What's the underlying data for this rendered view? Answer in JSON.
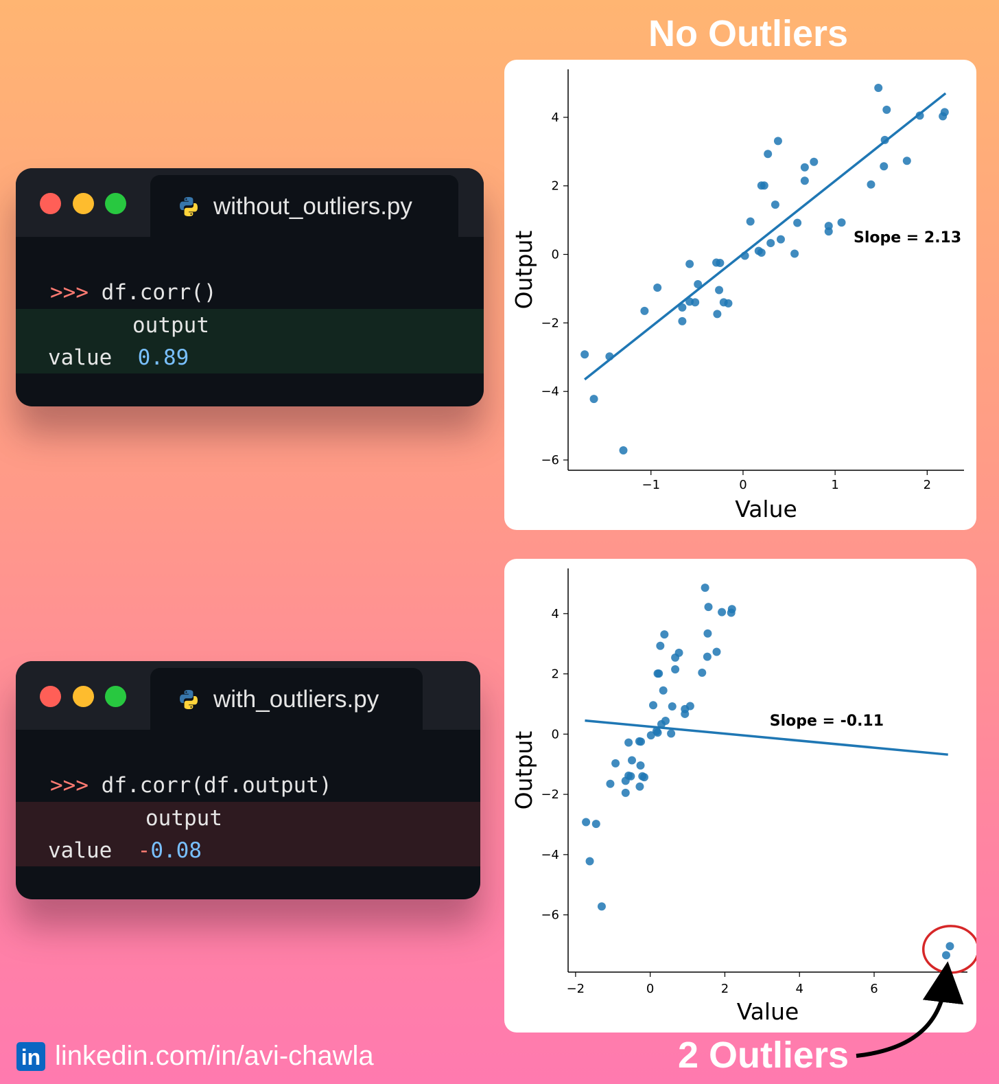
{
  "headline_top": "No Outliers",
  "headline_bottom": "2 Outliers",
  "windows": [
    {
      "filename": "without_outliers.py",
      "prompt": ">>>",
      "command": " df.corr()",
      "out_header": "output",
      "row_label": "value",
      "row_value_sign": "",
      "row_value": "0.89"
    },
    {
      "filename": "with_outliers.py",
      "prompt": ">>>",
      "command": " df.corr(df.output)",
      "out_header": "output",
      "row_label": "value",
      "row_value_sign": "-",
      "row_value": "0.08"
    }
  ],
  "footer": {
    "linkedin_logo": "in",
    "linkedin_text": "linkedin.com/in/avi-chawla"
  },
  "colors": {
    "point": "#1f77b4",
    "line": "#1f77b4",
    "highlight": "#d62728",
    "prompt": "#ff7b72",
    "number": "#79c0ff"
  },
  "chart_data": [
    {
      "type": "scatter",
      "xlabel": "Value",
      "ylabel": "Output",
      "xlim": [
        -1.9,
        2.4
      ],
      "ylim": [
        -6.3,
        5.4
      ],
      "xticks": [
        {
          "v": -1,
          "label": "−1"
        },
        {
          "v": 0,
          "label": "0"
        },
        {
          "v": 1,
          "label": "1"
        },
        {
          "v": 2,
          "label": "2"
        }
      ],
      "yticks": [
        {
          "v": 4,
          "label": "4"
        },
        {
          "v": 2,
          "label": "2"
        },
        {
          "v": 0,
          "label": "0"
        },
        {
          "v": -2,
          "label": "−2"
        },
        {
          "v": -4,
          "label": "−4"
        },
        {
          "v": -6,
          "label": "−6"
        }
      ],
      "slope_label": "Slope = 2.13",
      "slope_label_pos": [
        1.2,
        0.35
      ],
      "fit_line": [
        [
          -1.72,
          -3.65
        ],
        [
          2.2,
          4.7
        ]
      ],
      "points": [
        [
          -1.72,
          -2.92
        ],
        [
          -1.62,
          -4.22
        ],
        [
          -1.45,
          -2.98
        ],
        [
          -1.3,
          -5.72
        ],
        [
          -1.07,
          -1.65
        ],
        [
          -0.93,
          -0.97
        ],
        [
          -0.66,
          -1.55
        ],
        [
          -0.66,
          -1.95
        ],
        [
          -0.58,
          -0.28
        ],
        [
          -0.58,
          -1.38
        ],
        [
          -0.52,
          -1.4
        ],
        [
          -0.49,
          -0.87
        ],
        [
          -0.29,
          -0.24
        ],
        [
          -0.25,
          -0.25
        ],
        [
          -0.28,
          -1.74
        ],
        [
          -0.26,
          -1.04
        ],
        [
          -0.21,
          -1.4
        ],
        [
          -0.16,
          -1.43
        ],
        [
          0.02,
          -0.04
        ],
        [
          0.08,
          0.96
        ],
        [
          0.17,
          0.1
        ],
        [
          0.2,
          0.05
        ],
        [
          0.2,
          2.01
        ],
        [
          0.23,
          2.01
        ],
        [
          0.27,
          2.93
        ],
        [
          0.3,
          0.33
        ],
        [
          0.35,
          1.45
        ],
        [
          0.38,
          3.31
        ],
        [
          0.41,
          0.44
        ],
        [
          0.56,
          0.02
        ],
        [
          0.59,
          0.92
        ],
        [
          0.67,
          2.15
        ],
        [
          0.67,
          2.54
        ],
        [
          0.77,
          2.7
        ],
        [
          0.93,
          0.83
        ],
        [
          0.93,
          0.67
        ],
        [
          1.07,
          0.93
        ],
        [
          1.39,
          2.04
        ],
        [
          1.47,
          4.86
        ],
        [
          1.53,
          2.57
        ],
        [
          1.54,
          3.34
        ],
        [
          1.56,
          4.22
        ],
        [
          1.78,
          2.73
        ],
        [
          1.92,
          4.05
        ],
        [
          2.17,
          4.03
        ],
        [
          2.19,
          4.15
        ]
      ]
    },
    {
      "type": "scatter",
      "xlabel": "Value",
      "ylabel": "Output",
      "xlim": [
        -2.2,
        8.5
      ],
      "ylim": [
        -7.9,
        5.5
      ],
      "xticks": [
        {
          "v": -2,
          "label": "−2"
        },
        {
          "v": 0,
          "label": "0"
        },
        {
          "v": 2,
          "label": "2"
        },
        {
          "v": 4,
          "label": "4"
        },
        {
          "v": 6,
          "label": "6"
        },
        {
          "v": 8,
          "label": "8"
        }
      ],
      "yticks": [
        {
          "v": 4,
          "label": "4"
        },
        {
          "v": 2,
          "label": "2"
        },
        {
          "v": 0,
          "label": "0"
        },
        {
          "v": -2,
          "label": "−2"
        },
        {
          "v": -4,
          "label": "−4"
        },
        {
          "v": -6,
          "label": "−6"
        }
      ],
      "slope_label": "Slope = -0.11",
      "slope_label_pos": [
        3.2,
        0.28
      ],
      "fit_line": [
        [
          -1.75,
          0.45
        ],
        [
          7.98,
          -0.68
        ]
      ],
      "outliers": [
        [
          7.93,
          -7.34
        ],
        [
          8.03,
          -7.04
        ]
      ],
      "points": [
        [
          -1.72,
          -2.92
        ],
        [
          -1.62,
          -4.22
        ],
        [
          -1.45,
          -2.98
        ],
        [
          -1.3,
          -5.72
        ],
        [
          -1.07,
          -1.65
        ],
        [
          -0.93,
          -0.97
        ],
        [
          -0.66,
          -1.55
        ],
        [
          -0.66,
          -1.95
        ],
        [
          -0.58,
          -0.28
        ],
        [
          -0.58,
          -1.38
        ],
        [
          -0.52,
          -1.4
        ],
        [
          -0.49,
          -0.87
        ],
        [
          -0.29,
          -0.24
        ],
        [
          -0.25,
          -0.25
        ],
        [
          -0.28,
          -1.74
        ],
        [
          -0.26,
          -1.04
        ],
        [
          -0.21,
          -1.4
        ],
        [
          -0.16,
          -1.43
        ],
        [
          0.02,
          -0.04
        ],
        [
          0.08,
          0.96
        ],
        [
          0.17,
          0.1
        ],
        [
          0.2,
          0.05
        ],
        [
          0.2,
          2.01
        ],
        [
          0.23,
          2.01
        ],
        [
          0.27,
          2.93
        ],
        [
          0.3,
          0.33
        ],
        [
          0.35,
          1.45
        ],
        [
          0.38,
          3.31
        ],
        [
          0.41,
          0.44
        ],
        [
          0.56,
          0.02
        ],
        [
          0.59,
          0.92
        ],
        [
          0.67,
          2.15
        ],
        [
          0.67,
          2.54
        ],
        [
          0.77,
          2.7
        ],
        [
          0.93,
          0.83
        ],
        [
          0.93,
          0.67
        ],
        [
          1.07,
          0.93
        ],
        [
          1.39,
          2.04
        ],
        [
          1.47,
          4.86
        ],
        [
          1.53,
          2.57
        ],
        [
          1.54,
          3.34
        ],
        [
          1.56,
          4.22
        ],
        [
          1.78,
          2.73
        ],
        [
          1.92,
          4.05
        ],
        [
          2.17,
          4.03
        ],
        [
          2.19,
          4.15
        ]
      ]
    }
  ]
}
